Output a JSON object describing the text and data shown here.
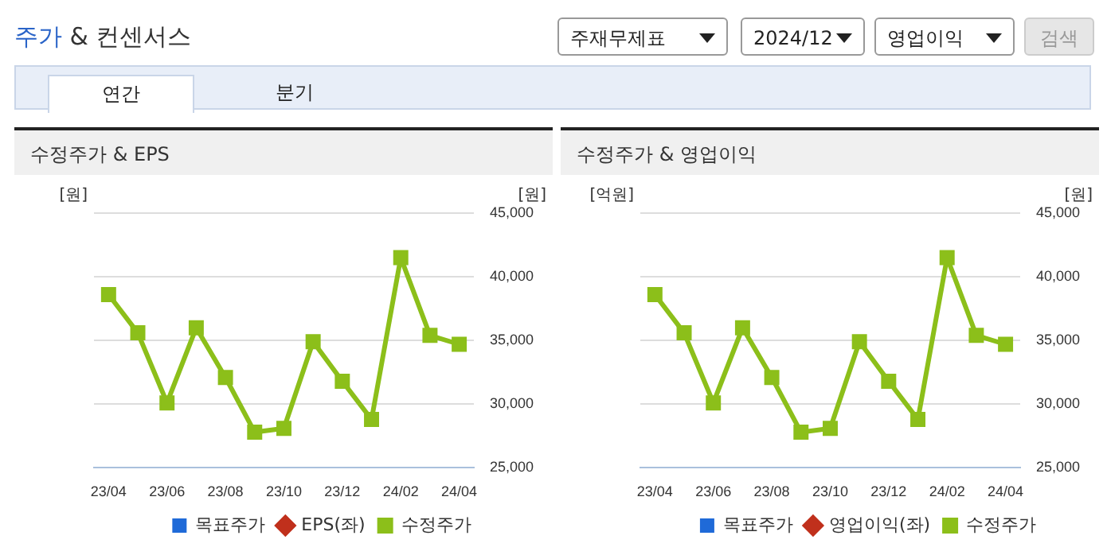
{
  "chart_data": [
    {
      "type": "other",
      "title": "주가 & 컨센서스",
      "annotations": [
        "주재무제표",
        "2024/12",
        "영업이익",
        "검색",
        "연간",
        "분기"
      ]
    },
    {
      "type": "line",
      "title": "수정주가 & EPS",
      "ylabel": "[원]",
      "y2label": "[원]",
      "categories": [
        "23/04",
        null,
        "23/06",
        null,
        "23/08",
        null,
        "23/10",
        null,
        "23/12",
        null,
        "24/02",
        null,
        "24/04"
      ],
      "y2lim": [
        25000,
        45000
      ],
      "y2ticks": [
        {
          "value": 25000,
          "label": "25,000"
        },
        {
          "value": 30000,
          "label": "30,000"
        },
        {
          "value": 35000,
          "label": "35,000"
        },
        {
          "value": 40000,
          "label": "40,000"
        },
        {
          "value": 45000,
          "label": "45,000"
        }
      ],
      "grid": "y",
      "legend": "bottom",
      "marker": "square",
      "series": [
        {
          "name": "목표주가",
          "type": "bar",
          "color": "#1f6ad8",
          "values": [
            null,
            null,
            null,
            null,
            null,
            null,
            null,
            null,
            null,
            null,
            null,
            null,
            null
          ]
        },
        {
          "name": "EPS(좌)",
          "color": "#c0301c",
          "values": [
            null,
            null,
            null,
            null,
            null,
            null,
            null,
            null,
            null,
            null,
            null,
            null,
            null
          ]
        },
        {
          "name": "수정주가",
          "color": "#8cbf1a",
          "axis": "y2",
          "values": [
            38600,
            35600,
            30100,
            36000,
            32100,
            27800,
            28100,
            34900,
            31800,
            28800,
            41500,
            35400,
            34700
          ]
        }
      ]
    },
    {
      "type": "line",
      "title": "수정주가 & 영업이익",
      "ylabel": "[억원]",
      "y2label": "[원]",
      "categories": [
        "23/04",
        null,
        "23/06",
        null,
        "23/08",
        null,
        "23/10",
        null,
        "23/12",
        null,
        "24/02",
        null,
        "24/04"
      ],
      "y2lim": [
        25000,
        45000
      ],
      "y2ticks": [
        {
          "value": 25000,
          "label": "25,000"
        },
        {
          "value": 30000,
          "label": "30,000"
        },
        {
          "value": 35000,
          "label": "35,000"
        },
        {
          "value": 40000,
          "label": "40,000"
        },
        {
          "value": 45000,
          "label": "45,000"
        }
      ],
      "grid": "y",
      "legend": "bottom",
      "marker": "square",
      "series": [
        {
          "name": "목표주가",
          "type": "bar",
          "color": "#1f6ad8",
          "values": [
            null,
            null,
            null,
            null,
            null,
            null,
            null,
            null,
            null,
            null,
            null,
            null,
            null
          ]
        },
        {
          "name": "영업이익(좌)",
          "color": "#c0301c",
          "values": [
            null,
            null,
            null,
            null,
            null,
            null,
            null,
            null,
            null,
            null,
            null,
            null,
            null
          ]
        },
        {
          "name": "수정주가",
          "color": "#8cbf1a",
          "axis": "y2",
          "values": [
            38600,
            35600,
            30100,
            36000,
            32100,
            27800,
            28100,
            34900,
            31800,
            28800,
            41500,
            35400,
            34700
          ]
        }
      ]
    }
  ]
}
